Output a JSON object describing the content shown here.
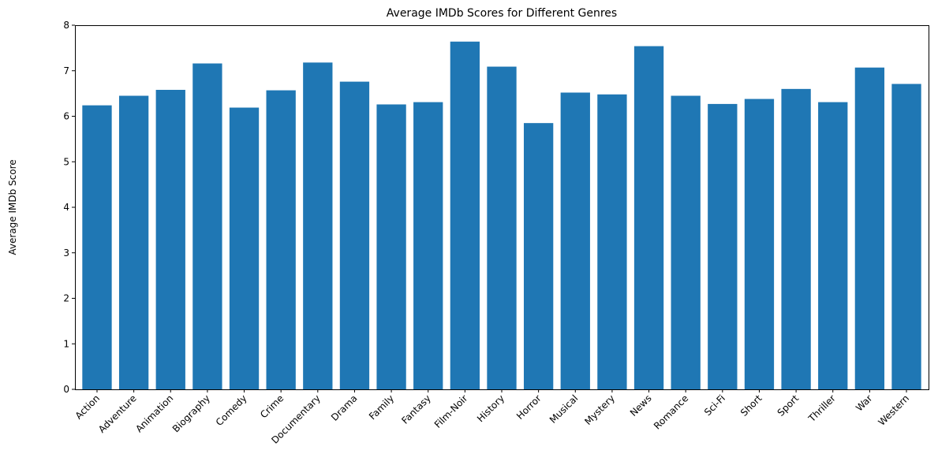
{
  "chart_data": {
    "type": "bar",
    "title": "Average IMDb Scores for Different Genres",
    "xlabel": "",
    "ylabel": "Average IMDb Score",
    "categories": [
      "Action",
      "Adventure",
      "Animation",
      "Biography",
      "Comedy",
      "Crime",
      "Documentary",
      "Drama",
      "Family",
      "Fantasy",
      "Film-Noir",
      "History",
      "Horror",
      "Musical",
      "Mystery",
      "News",
      "Romance",
      "Sci-Fi",
      "Short",
      "Sport",
      "Thriller",
      "War",
      "Western"
    ],
    "values": [
      6.24,
      6.45,
      6.58,
      7.16,
      6.19,
      6.57,
      7.18,
      6.76,
      6.26,
      6.31,
      7.64,
      7.09,
      5.85,
      6.52,
      6.48,
      7.54,
      6.45,
      6.27,
      6.38,
      6.6,
      6.31,
      7.07,
      6.71
    ],
    "ylim": [
      0,
      8
    ],
    "yticks": [
      0,
      1,
      2,
      3,
      4,
      5,
      6,
      7,
      8
    ],
    "bar_color": "#1f77b4",
    "grid": false,
    "legend": "none"
  }
}
